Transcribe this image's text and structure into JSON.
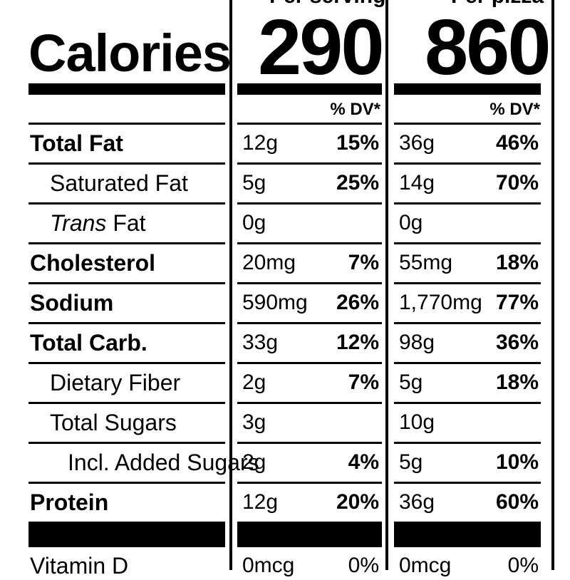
{
  "header": {
    "per_serving_label": "Per serving",
    "per_pizza_label": "Per pizza",
    "calories_label": "Calories",
    "calories_serving": "290",
    "calories_pizza": "860",
    "dv_label": "% DV*"
  },
  "rows": [
    {
      "label": "Total Fat",
      "style": "bold",
      "serving_amt": "12g",
      "serving_dv": "15%",
      "pizza_amt": "36g",
      "pizza_dv": "46%"
    },
    {
      "label": "Saturated Fat",
      "style": "indent",
      "serving_amt": "5g",
      "serving_dv": "25%",
      "pizza_amt": "14g",
      "pizza_dv": "70%"
    },
    {
      "label_italic": "Trans",
      "label": " Fat",
      "style": "indent",
      "serving_amt": "0g",
      "serving_dv": "",
      "pizza_amt": "0g",
      "pizza_dv": ""
    },
    {
      "label": "Cholesterol",
      "style": "bold",
      "serving_amt": "20mg",
      "serving_dv": "7%",
      "pizza_amt": "55mg",
      "pizza_dv": "18%"
    },
    {
      "label": "Sodium",
      "style": "bold",
      "serving_amt": "590mg",
      "serving_dv": "26%",
      "pizza_amt": "1,770mg",
      "pizza_dv": "77%"
    },
    {
      "label": "Total Carb.",
      "style": "bold",
      "serving_amt": "33g",
      "serving_dv": "12%",
      "pizza_amt": "98g",
      "pizza_dv": "36%"
    },
    {
      "label": "Dietary Fiber",
      "style": "indent",
      "serving_amt": "2g",
      "serving_dv": "7%",
      "pizza_amt": "5g",
      "pizza_dv": "18%"
    },
    {
      "label": "Total Sugars",
      "style": "indent",
      "serving_amt": "3g",
      "serving_dv": "",
      "pizza_amt": "10g",
      "pizza_dv": ""
    },
    {
      "label": "Incl. Added Sugars",
      "style": "indent2",
      "serving_amt": "2g",
      "serving_dv": "4%",
      "pizza_amt": "5g",
      "pizza_dv": "10%"
    },
    {
      "label": "Protein",
      "style": "bold",
      "serving_amt": "12g",
      "serving_dv": "20%",
      "pizza_amt": "36g",
      "pizza_dv": "60%"
    }
  ],
  "vitamin_row": {
    "label": "Vitamin D",
    "serving_amt": "0mcg",
    "serving_dv": "0%",
    "pizza_amt": "0mcg",
    "pizza_dv": "0%"
  }
}
